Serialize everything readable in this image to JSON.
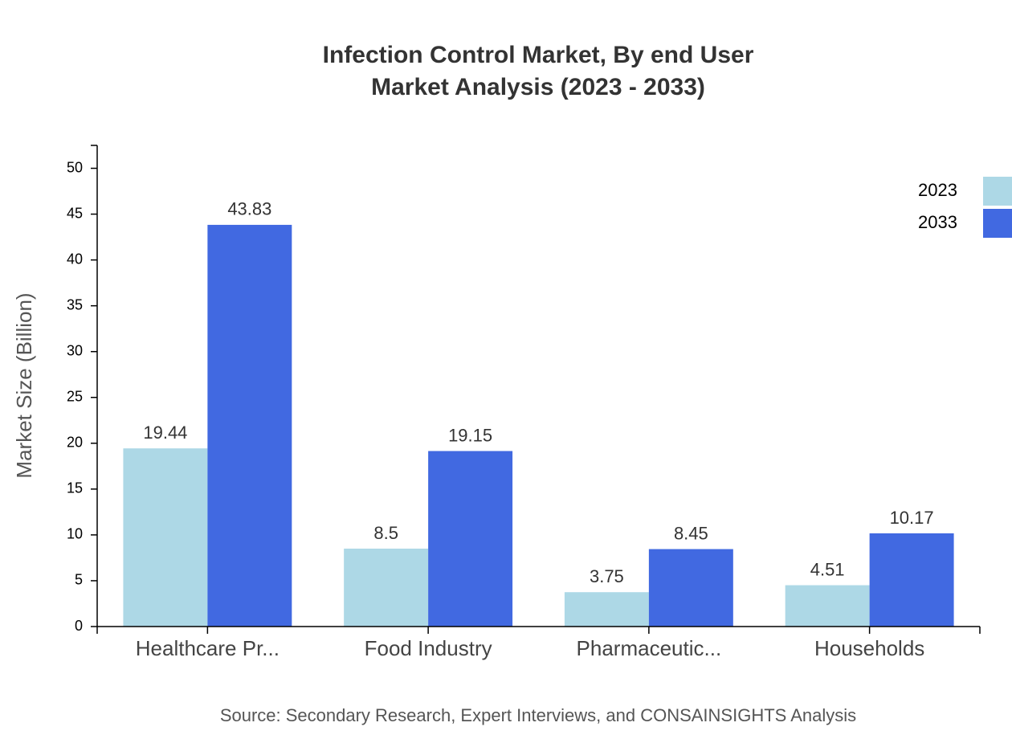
{
  "chart_data": {
    "type": "bar",
    "title": "Infection Control Market, By end User",
    "subtitle": "Market Analysis (2023 - 2033)",
    "y_label": "Market Size (Billion)",
    "source": "Source: Secondary Research, Expert Interviews, and CONSAINSIGHTS Analysis",
    "categories": [
      "Healthcare Pr...",
      "Food Industry",
      "Pharmaceutic...",
      "Households"
    ],
    "series": [
      {
        "name": "2023",
        "color": "#add8e6",
        "values": [
          19.44,
          8.5,
          3.75,
          4.51
        ]
      },
      {
        "name": "2033",
        "color": "#4169e1",
        "values": [
          43.83,
          19.15,
          8.45,
          10.17
        ]
      }
    ],
    "ylim": [
      0,
      52.5
    ],
    "yticks": [
      0,
      5,
      10,
      15,
      20,
      25,
      30,
      35,
      40,
      45,
      50
    ],
    "legend": "top-right"
  }
}
